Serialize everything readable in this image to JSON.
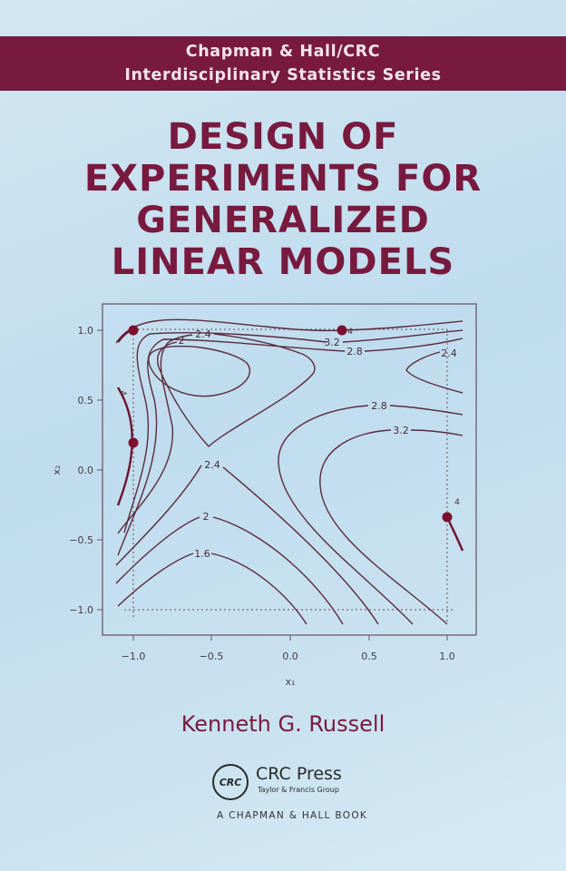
{
  "series_band": {
    "line1": "Chapman & Hall/CRC",
    "line2": "Interdisciplinary Statistics Series"
  },
  "title_lines": [
    "DESIGN OF",
    "EXPERIMENTS FOR",
    "GENERALIZED",
    "LINEAR MODELS"
  ],
  "figure": {
    "type": "contour",
    "xlabel": "x₁",
    "ylabel": "x₂",
    "xlim": [
      -1.1,
      1.1
    ],
    "ylim": [
      -1.1,
      1.1
    ],
    "x_ticks": [
      "−1.0",
      "−0.5",
      "0.0",
      "0.5",
      "1.0"
    ],
    "y_ticks": [
      "1.0",
      "0.5",
      "0.0",
      "−0.5",
      "−1.0"
    ],
    "contour_labels": [
      "2.4",
      "2",
      "3.2",
      "2.8",
      "2.4",
      "2.8",
      "3.2",
      "2.4",
      "2",
      "1.6",
      "4",
      "4",
      "4"
    ],
    "design_points": [
      [
        -1.0,
        1.0
      ],
      [
        0.33,
        1.0
      ],
      [
        -1.0,
        0.2
      ],
      [
        1.0,
        -0.33
      ]
    ],
    "colors": {
      "contour": "#5a2a3c",
      "points": "#7a0f2e",
      "accent": "#781a3e"
    }
  },
  "author": "Kenneth G. Russell",
  "publisher": {
    "logo_text": "CRC",
    "name": "CRC Press",
    "group": "Taylor & Francis Group",
    "imprint": "A CHAPMAN & HALL BOOK"
  }
}
